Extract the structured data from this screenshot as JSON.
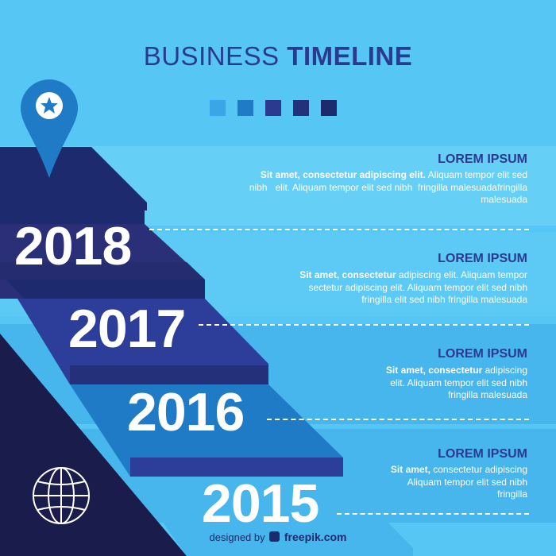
{
  "header": {
    "title_regular": "BUSINESS",
    "title_bold": "TIMELINE"
  },
  "colors": {
    "background": "#56c7f4",
    "band_light": "#66cff6",
    "band_mid": "#47b6ec",
    "navy": "#1d2a6e",
    "dark_navy": "#1a1c4c",
    "step_blue": "#2d3d9a",
    "accent_blue": "#1f7bc5",
    "heading": "#2b3a8f",
    "swatch_colors": [
      "#3aa6e8",
      "#1f7bc5",
      "#2b3a8f",
      "#25307a",
      "#1d2a6e"
    ]
  },
  "icons": {
    "pin": "map-pin-star-icon",
    "globe": "globe-icon",
    "brand": "freepik-logo-icon"
  },
  "timeline": [
    {
      "year": "2018",
      "heading": "LOREM IPSUM",
      "lines": [
        [
          {
            "b": "Sit amet, consectetur adipiscing elit."
          },
          {
            "t": " Aliquam tempor elit sed"
          }
        ],
        [
          {
            "t": "nibh   elit. Aliquam tempor elit sed nibh  fringilla malesuadafringilla"
          }
        ],
        [
          {
            "t": "malesuada"
          }
        ]
      ]
    },
    {
      "year": "2017",
      "heading": "LOREM IPSUM",
      "lines": [
        [
          {
            "b": "Sit amet, consectetur"
          },
          {
            "t": " adipiscing elit. Aliquam tempor"
          }
        ],
        [
          {
            "t": "sectetur adipiscing elit. Aliquam tempor elit sed nibh"
          }
        ],
        [
          {
            "t": "fringilla elit sed nibh fringilla malesuada"
          }
        ]
      ]
    },
    {
      "year": "2016",
      "heading": "LOREM IPSUM",
      "lines": [
        [
          {
            "b": "Sit amet, consectetur"
          },
          {
            "t": " adipiscing"
          }
        ],
        [
          {
            "t": "elit. Aliquam tempor elit sed nibh"
          }
        ],
        [
          {
            "t": "fringilla malesuada"
          }
        ]
      ]
    },
    {
      "year": "2015",
      "heading": "LOREM IPSUM",
      "lines": [
        [
          {
            "b": "Sit amet,"
          },
          {
            "t": " consectetur adipiscing"
          }
        ],
        [
          {
            "t": "Aliquam tempor elit sed nibh"
          }
        ],
        [
          {
            "t": "fringilla"
          }
        ]
      ]
    }
  ],
  "credit": {
    "prefix": "designed by",
    "brand": "freepik.com"
  }
}
